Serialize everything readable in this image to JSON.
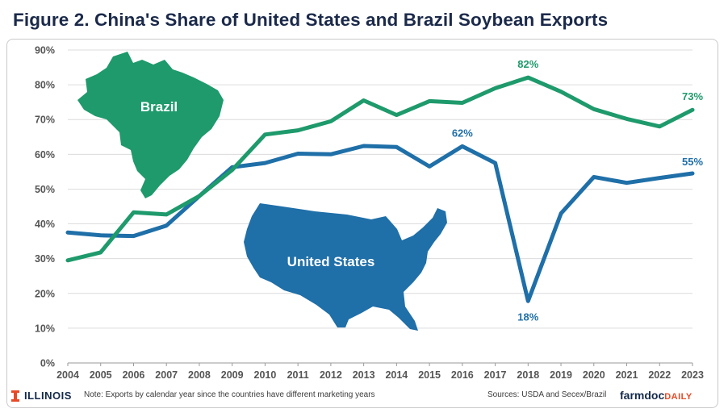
{
  "title": "Figure 2. China's Share of United States and Brazil Soybean Exports",
  "footer": {
    "org": "ILLINOIS",
    "note": "Note: Exports by calendar year since the countries have different marketing years",
    "sources": "Sources: USDA and Secex/Brazil",
    "brand_main": "farmdoc",
    "brand_suffix": "DAILY"
  },
  "colors": {
    "united_states": "#1f6fa8",
    "brazil": "#1e9a6c",
    "title": "#1b2a4a"
  },
  "chart_data": {
    "type": "line",
    "title": "Figure 2. China's Share of United States and Brazil Soybean Exports",
    "x": [
      2004,
      2005,
      2006,
      2007,
      2008,
      2009,
      2010,
      2011,
      2012,
      2013,
      2014,
      2015,
      2016,
      2017,
      2018,
      2019,
      2020,
      2021,
      2022,
      2023
    ],
    "yticks": [
      "0%",
      "10%",
      "20%",
      "30%",
      "40%",
      "50%",
      "60%",
      "70%",
      "80%",
      "90%"
    ],
    "ylim": [
      0,
      90
    ],
    "grid": true,
    "series": [
      {
        "name": "United States",
        "color": "#1f6fa8",
        "values": [
          37.5,
          36.7,
          36.5,
          39.5,
          48.0,
          56.3,
          57.5,
          60.2,
          60.0,
          62.4,
          62.1,
          56.5,
          62.3,
          57.5,
          17.8,
          43.0,
          53.5,
          51.8,
          53.2,
          54.5
        ]
      },
      {
        "name": "Brazil",
        "color": "#1e9a6c",
        "values": [
          29.5,
          31.8,
          43.3,
          42.7,
          48.0,
          55.5,
          65.7,
          66.9,
          69.5,
          75.5,
          71.3,
          75.3,
          74.8,
          79.0,
          82.1,
          78.0,
          73.0,
          70.2,
          68.0,
          72.8
        ]
      }
    ],
    "annotations": [
      {
        "text": "62%",
        "x": 2016,
        "y": 62.3,
        "series": "United States"
      },
      {
        "text": "18%",
        "x": 2018,
        "y": 17.8,
        "series": "United States"
      },
      {
        "text": "55%",
        "x": 2023,
        "y": 54.5,
        "series": "United States"
      },
      {
        "text": "82%",
        "x": 2018,
        "y": 82.1,
        "series": "Brazil"
      },
      {
        "text": "73%",
        "x": 2023,
        "y": 72.8,
        "series": "Brazil"
      }
    ],
    "map_labels": [
      "Brazil",
      "United States"
    ]
  }
}
